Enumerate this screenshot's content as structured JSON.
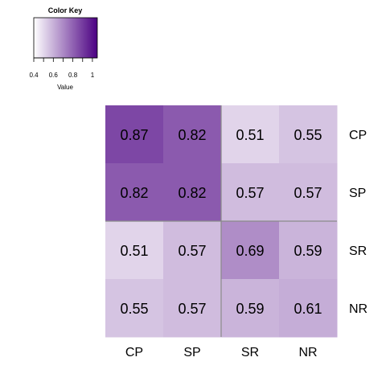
{
  "chart_data": {
    "type": "heatmap",
    "rows": [
      "CP",
      "SP",
      "SR",
      "NR"
    ],
    "columns": [
      "CP",
      "SP",
      "SR",
      "NR"
    ],
    "values": [
      [
        0.87,
        0.82,
        0.51,
        0.55
      ],
      [
        0.82,
        0.82,
        0.57,
        0.57
      ],
      [
        0.51,
        0.57,
        0.69,
        0.59
      ],
      [
        0.55,
        0.57,
        0.59,
        0.61
      ]
    ],
    "cell_labels": [
      [
        "0.87",
        "0.82",
        "0.51",
        "0.55"
      ],
      [
        "0.82",
        "0.82",
        "0.57",
        "0.57"
      ],
      [
        "0.51",
        "0.57",
        "0.69",
        "0.59"
      ],
      [
        "0.55",
        "0.57",
        "0.59",
        "0.61"
      ]
    ],
    "value_range": [
      0.4,
      1.05
    ],
    "color_low": "#ffffff",
    "color_high": "#4b0082",
    "cluster_groups": [
      [
        "CP",
        "SP"
      ],
      [
        "SR",
        "NR"
      ]
    ],
    "legend": {
      "title": "Color Key",
      "xlabel": "Value",
      "ticks": [
        0.4,
        0.6,
        0.8,
        1
      ],
      "tick_labels": [
        "0.4",
        "0.6",
        "0.8",
        "1"
      ],
      "placement": "top-left"
    }
  }
}
